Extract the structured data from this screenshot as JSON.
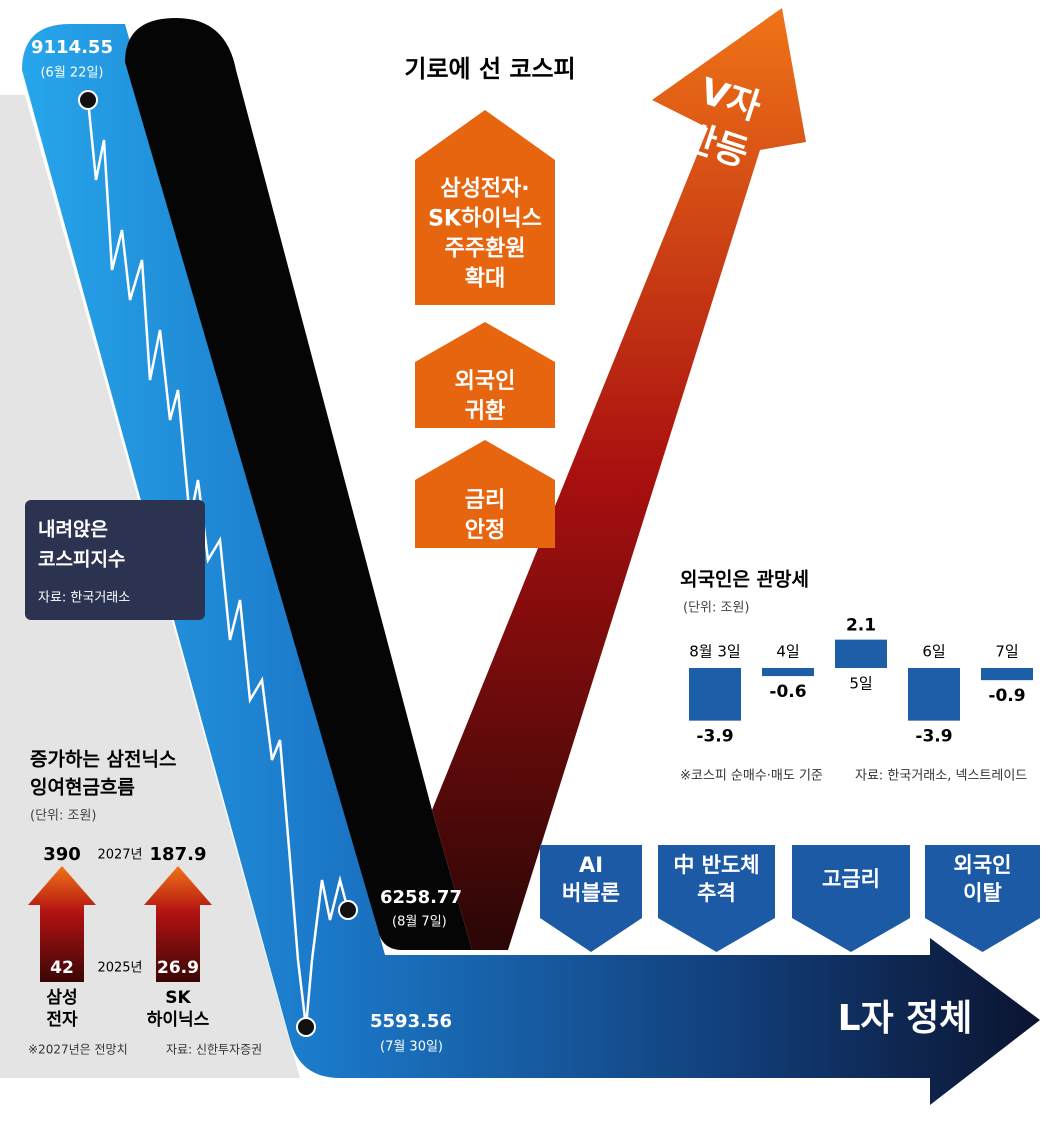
{
  "title": "기로에 선 코스피",
  "kospi": {
    "label": [
      "내려앉은",
      "코스피지수"
    ],
    "source": "자료: 한국거래소",
    "values": [
      9114.55,
      5593.56,
      6258.77
    ],
    "dates": [
      "(6월 22일)",
      "(7월 30일)",
      "(8월 7일)"
    ]
  },
  "rebound": {
    "label": [
      "V자",
      "반등"
    ],
    "factors": [
      [
        "삼성전자·",
        "SK하이닉스",
        "주주환원",
        "확대"
      ],
      [
        "외국인",
        "귀환"
      ],
      [
        "금리",
        "안정"
      ]
    ]
  },
  "stagnation": {
    "label": "L자 정체",
    "factors": [
      [
        "AI",
        "버블론"
      ],
      [
        "中 반도체",
        "추격"
      ],
      [
        "고금리"
      ],
      [
        "외국인",
        "이탈"
      ]
    ]
  },
  "chart_data": [
    {
      "type": "bar",
      "title": "외국인은 관망세",
      "unit": "(단위: 조원)",
      "categories": [
        "8월 3일",
        "4일",
        "5일",
        "6일",
        "7일"
      ],
      "values": [
        -3.9,
        -0.6,
        2.1,
        -3.9,
        -0.9
      ],
      "color": "#1c5ea8",
      "notes": [
        "※코스피 순매수·매도 기준",
        "자료: 한국거래소, 넥스트레이드"
      ]
    },
    {
      "type": "arrow",
      "title": [
        "증가하는 삼전닉스",
        "잉여현금흐름"
      ],
      "unit": "(단위: 조원)",
      "categories": [
        [
          "삼성",
          "전자"
        ],
        [
          "SK",
          "하이닉스"
        ]
      ],
      "series": [
        {
          "name": "2025년",
          "values": [
            42,
            26.9
          ]
        },
        {
          "name": "2027년",
          "values": [
            390,
            187.9
          ]
        }
      ],
      "notes": [
        "※2027년은 전망치",
        "자료: 신한투자증권"
      ]
    }
  ]
}
